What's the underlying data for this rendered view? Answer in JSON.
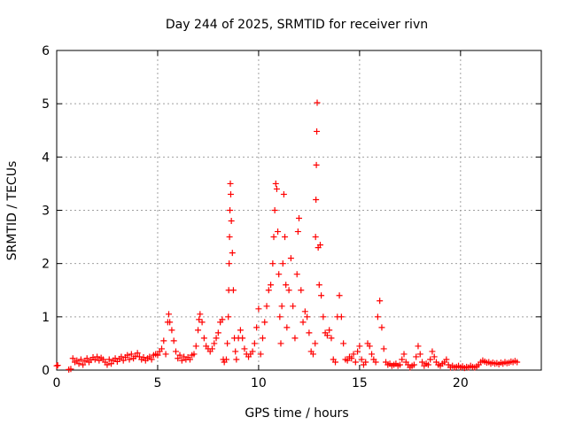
{
  "chart_data": {
    "type": "scatter",
    "title": "Day 244 of 2025, SRMTID for receiver rivn",
    "xlabel": "GPS time / hours",
    "ylabel": "SRMTID / TECUs",
    "xlim": [
      0,
      24
    ],
    "ylim": [
      0,
      6
    ],
    "xticks": [
      0,
      5,
      10,
      15,
      20
    ],
    "yticks": [
      0,
      1,
      2,
      3,
      4,
      5,
      6
    ],
    "grid": true,
    "marker": "+",
    "color": "#ff0000",
    "series": [
      {
        "points": [
          [
            0.0,
            0.08
          ],
          [
            0.05,
            0.09
          ],
          [
            0.6,
            0.01
          ],
          [
            0.7,
            0.02
          ],
          [
            0.8,
            0.22
          ],
          [
            0.9,
            0.15
          ],
          [
            1.0,
            0.18
          ],
          [
            1.1,
            0.12
          ],
          [
            1.2,
            0.2
          ],
          [
            1.3,
            0.1
          ],
          [
            1.4,
            0.17
          ],
          [
            1.5,
            0.22
          ],
          [
            1.6,
            0.15
          ],
          [
            1.7,
            0.19
          ],
          [
            1.8,
            0.24
          ],
          [
            1.9,
            0.2
          ],
          [
            2.0,
            0.25
          ],
          [
            2.1,
            0.18
          ],
          [
            2.2,
            0.23
          ],
          [
            2.3,
            0.2
          ],
          [
            2.4,
            0.15
          ],
          [
            2.5,
            0.1
          ],
          [
            2.6,
            0.2
          ],
          [
            2.7,
            0.12
          ],
          [
            2.8,
            0.18
          ],
          [
            2.9,
            0.22
          ],
          [
            3.0,
            0.16
          ],
          [
            3.1,
            0.21
          ],
          [
            3.2,
            0.25
          ],
          [
            3.3,
            0.18
          ],
          [
            3.4,
            0.24
          ],
          [
            3.5,
            0.28
          ],
          [
            3.6,
            0.2
          ],
          [
            3.7,
            0.3
          ],
          [
            3.8,
            0.22
          ],
          [
            3.9,
            0.26
          ],
          [
            4.0,
            0.32
          ],
          [
            4.1,
            0.25
          ],
          [
            4.2,
            0.2
          ],
          [
            4.3,
            0.24
          ],
          [
            4.4,
            0.18
          ],
          [
            4.5,
            0.22
          ],
          [
            4.6,
            0.25
          ],
          [
            4.7,
            0.2
          ],
          [
            4.8,
            0.28
          ],
          [
            4.9,
            0.3
          ],
          [
            5.0,
            0.28
          ],
          [
            5.1,
            0.35
          ],
          [
            5.2,
            0.4
          ],
          [
            5.3,
            0.55
          ],
          [
            5.4,
            0.3
          ],
          [
            5.5,
            0.9
          ],
          [
            5.55,
            1.05
          ],
          [
            5.6,
            0.9
          ],
          [
            5.7,
            0.75
          ],
          [
            5.8,
            0.55
          ],
          [
            5.9,
            0.35
          ],
          [
            6.0,
            0.22
          ],
          [
            6.1,
            0.28
          ],
          [
            6.2,
            0.18
          ],
          [
            6.3,
            0.25
          ],
          [
            6.4,
            0.2
          ],
          [
            6.5,
            0.24
          ],
          [
            6.6,
            0.2
          ],
          [
            6.7,
            0.28
          ],
          [
            6.8,
            0.3
          ],
          [
            6.9,
            0.45
          ],
          [
            7.0,
            0.75
          ],
          [
            7.05,
            0.95
          ],
          [
            7.1,
            1.05
          ],
          [
            7.2,
            0.9
          ],
          [
            7.3,
            0.6
          ],
          [
            7.4,
            0.45
          ],
          [
            7.5,
            0.4
          ],
          [
            7.6,
            0.35
          ],
          [
            7.7,
            0.4
          ],
          [
            7.8,
            0.5
          ],
          [
            7.9,
            0.6
          ],
          [
            8.0,
            0.7
          ],
          [
            8.1,
            0.9
          ],
          [
            8.2,
            0.95
          ],
          [
            8.25,
            0.2
          ],
          [
            8.3,
            0.15
          ],
          [
            8.4,
            0.2
          ],
          [
            8.45,
            0.5
          ],
          [
            8.5,
            1.0
          ],
          [
            8.52,
            1.5
          ],
          [
            8.54,
            2.0
          ],
          [
            8.56,
            2.5
          ],
          [
            8.58,
            3.0
          ],
          [
            8.6,
            3.5
          ],
          [
            8.62,
            3.3
          ],
          [
            8.65,
            2.8
          ],
          [
            8.7,
            2.2
          ],
          [
            8.75,
            1.5
          ],
          [
            8.8,
            0.6
          ],
          [
            8.85,
            0.35
          ],
          [
            8.9,
            0.2
          ],
          [
            9.0,
            0.6
          ],
          [
            9.1,
            0.75
          ],
          [
            9.2,
            0.6
          ],
          [
            9.3,
            0.4
          ],
          [
            9.4,
            0.3
          ],
          [
            9.5,
            0.25
          ],
          [
            9.6,
            0.3
          ],
          [
            9.7,
            0.35
          ],
          [
            9.8,
            0.5
          ],
          [
            9.9,
            0.8
          ],
          [
            10.0,
            1.15
          ],
          [
            10.1,
            0.3
          ],
          [
            10.2,
            0.6
          ],
          [
            10.3,
            0.9
          ],
          [
            10.4,
            1.2
          ],
          [
            10.5,
            1.5
          ],
          [
            10.6,
            1.6
          ],
          [
            10.7,
            2.0
          ],
          [
            10.75,
            2.5
          ],
          [
            10.8,
            3.0
          ],
          [
            10.85,
            3.5
          ],
          [
            10.9,
            3.4
          ],
          [
            10.95,
            2.6
          ],
          [
            11.0,
            1.8
          ],
          [
            11.05,
            1.0
          ],
          [
            11.1,
            0.5
          ],
          [
            11.15,
            1.2
          ],
          [
            11.2,
            2.0
          ],
          [
            11.25,
            3.3
          ],
          [
            11.3,
            2.5
          ],
          [
            11.35,
            1.6
          ],
          [
            11.4,
            0.8
          ],
          [
            11.5,
            1.5
          ],
          [
            11.6,
            2.1
          ],
          [
            11.7,
            1.2
          ],
          [
            11.8,
            0.6
          ],
          [
            11.9,
            1.8
          ],
          [
            11.95,
            2.6
          ],
          [
            12.0,
            2.85
          ],
          [
            12.1,
            1.5
          ],
          [
            12.2,
            0.9
          ],
          [
            12.3,
            1.1
          ],
          [
            12.4,
            1.0
          ],
          [
            12.5,
            0.7
          ],
          [
            12.6,
            0.35
          ],
          [
            12.7,
            0.3
          ],
          [
            12.8,
            0.5
          ],
          [
            12.82,
            2.5
          ],
          [
            12.84,
            3.2
          ],
          [
            12.86,
            3.85
          ],
          [
            12.88,
            4.48
          ],
          [
            12.9,
            5.02
          ],
          [
            12.95,
            2.3
          ],
          [
            13.0,
            1.6
          ],
          [
            13.05,
            2.35
          ],
          [
            13.1,
            1.4
          ],
          [
            13.2,
            1.0
          ],
          [
            13.3,
            0.7
          ],
          [
            13.4,
            0.65
          ],
          [
            13.5,
            0.75
          ],
          [
            13.6,
            0.6
          ],
          [
            13.7,
            0.2
          ],
          [
            13.8,
            0.15
          ],
          [
            13.9,
            1.0
          ],
          [
            14.0,
            1.4
          ],
          [
            14.1,
            1.0
          ],
          [
            14.2,
            0.5
          ],
          [
            14.3,
            0.2
          ],
          [
            14.4,
            0.18
          ],
          [
            14.5,
            0.25
          ],
          [
            14.6,
            0.22
          ],
          [
            14.7,
            0.3
          ],
          [
            14.8,
            0.15
          ],
          [
            14.9,
            0.35
          ],
          [
            15.0,
            0.45
          ],
          [
            15.1,
            0.2
          ],
          [
            15.2,
            0.1
          ],
          [
            15.3,
            0.15
          ],
          [
            15.4,
            0.5
          ],
          [
            15.5,
            0.45
          ],
          [
            15.6,
            0.3
          ],
          [
            15.7,
            0.2
          ],
          [
            15.8,
            0.15
          ],
          [
            15.9,
            1.0
          ],
          [
            16.0,
            1.3
          ],
          [
            16.1,
            0.8
          ],
          [
            16.2,
            0.4
          ],
          [
            16.3,
            0.15
          ],
          [
            16.4,
            0.1
          ],
          [
            16.5,
            0.12
          ],
          [
            16.6,
            0.08
          ],
          [
            16.7,
            0.1
          ],
          [
            16.8,
            0.12
          ],
          [
            16.9,
            0.08
          ],
          [
            17.0,
            0.1
          ],
          [
            17.1,
            0.2
          ],
          [
            17.2,
            0.3
          ],
          [
            17.3,
            0.15
          ],
          [
            17.4,
            0.1
          ],
          [
            17.5,
            0.05
          ],
          [
            17.6,
            0.08
          ],
          [
            17.7,
            0.1
          ],
          [
            17.8,
            0.25
          ],
          [
            17.9,
            0.45
          ],
          [
            18.0,
            0.3
          ],
          [
            18.1,
            0.15
          ],
          [
            18.2,
            0.08
          ],
          [
            18.3,
            0.12
          ],
          [
            18.4,
            0.1
          ],
          [
            18.5,
            0.2
          ],
          [
            18.6,
            0.35
          ],
          [
            18.7,
            0.25
          ],
          [
            18.8,
            0.15
          ],
          [
            18.9,
            0.1
          ],
          [
            19.0,
            0.08
          ],
          [
            19.1,
            0.12
          ],
          [
            19.2,
            0.15
          ],
          [
            19.3,
            0.2
          ],
          [
            19.4,
            0.1
          ],
          [
            19.5,
            0.05
          ],
          [
            19.6,
            0.08
          ],
          [
            19.7,
            0.05
          ],
          [
            19.8,
            0.06
          ],
          [
            19.9,
            0.08
          ],
          [
            20.0,
            0.05
          ],
          [
            20.1,
            0.07
          ],
          [
            20.2,
            0.04
          ],
          [
            20.3,
            0.06
          ],
          [
            20.4,
            0.05
          ],
          [
            20.5,
            0.08
          ],
          [
            20.6,
            0.06
          ],
          [
            20.7,
            0.05
          ],
          [
            20.8,
            0.07
          ],
          [
            20.9,
            0.1
          ],
          [
            21.0,
            0.15
          ],
          [
            21.1,
            0.18
          ],
          [
            21.2,
            0.16
          ],
          [
            21.3,
            0.14
          ],
          [
            21.4,
            0.15
          ],
          [
            21.5,
            0.12
          ],
          [
            21.6,
            0.14
          ],
          [
            21.7,
            0.12
          ],
          [
            21.8,
            0.13
          ],
          [
            21.9,
            0.11
          ],
          [
            22.0,
            0.14
          ],
          [
            22.1,
            0.12
          ],
          [
            22.2,
            0.15
          ],
          [
            22.3,
            0.13
          ],
          [
            22.4,
            0.14
          ],
          [
            22.5,
            0.16
          ],
          [
            22.6,
            0.15
          ],
          [
            22.7,
            0.17
          ],
          [
            22.8,
            0.15
          ]
        ]
      }
    ]
  }
}
